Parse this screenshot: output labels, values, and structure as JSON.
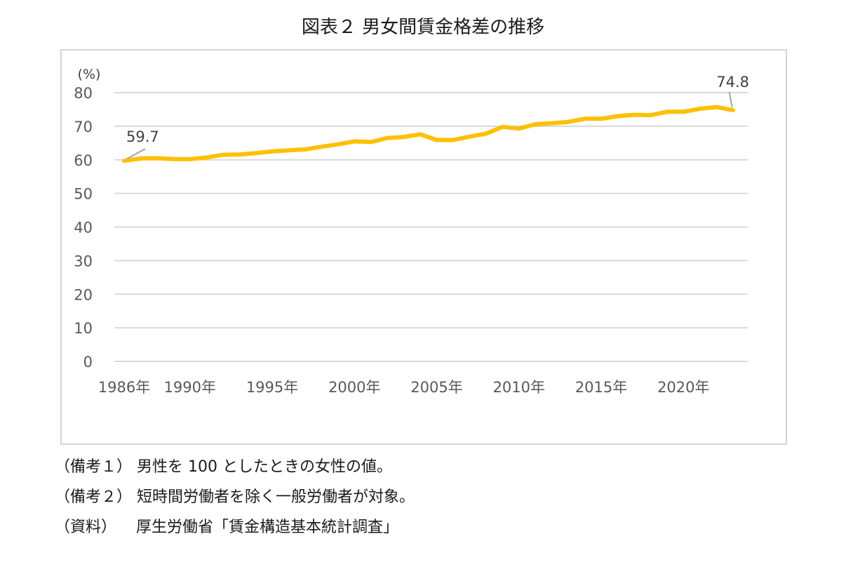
{
  "title": "図表２ 男女間賃金格差の推移",
  "chart_data": {
    "type": "line",
    "unit_label": "(%)",
    "ylim": [
      0,
      80
    ],
    "yticks": [
      0,
      10,
      20,
      30,
      40,
      50,
      60,
      70,
      80
    ],
    "grid": true,
    "legend": "none",
    "line_color": "#FFC000",
    "x_tick_labels": [
      {
        "year": 1986,
        "label": "1986年"
      },
      {
        "year": 1990,
        "label": "1990年"
      },
      {
        "year": 1995,
        "label": "1995年"
      },
      {
        "year": 2000,
        "label": "2000年"
      },
      {
        "year": 2005,
        "label": "2005年"
      },
      {
        "year": 2010,
        "label": "2010年"
      },
      {
        "year": 2015,
        "label": "2015年"
      },
      {
        "year": 2020,
        "label": "2020年"
      }
    ],
    "series": [
      {
        "x": [
          1986,
          1987,
          1988,
          1989,
          1990,
          1991,
          1992,
          1993,
          1994,
          1995,
          1996,
          1997,
          1998,
          1999,
          2000,
          2001,
          2002,
          2003,
          2004,
          2005,
          2006,
          2007,
          2008,
          2009,
          2010,
          2011,
          2012,
          2013,
          2014,
          2015,
          2016,
          2017,
          2018,
          2019,
          2020,
          2021,
          2022,
          2023
        ],
        "values": [
          59.7,
          60.4,
          60.5,
          60.2,
          60.2,
          60.7,
          61.5,
          61.6,
          62.0,
          62.5,
          62.8,
          63.1,
          63.9,
          64.6,
          65.5,
          65.3,
          66.5,
          66.8,
          67.6,
          65.9,
          65.9,
          66.9,
          67.8,
          69.8,
          69.3,
          70.6,
          70.9,
          71.3,
          72.2,
          72.2,
          73.0,
          73.4,
          73.3,
          74.3,
          74.3,
          75.2,
          75.7,
          74.8
        ]
      }
    ],
    "annotations": [
      {
        "year": 1986,
        "text": "59.7"
      },
      {
        "year": 2023,
        "text": "74.8"
      }
    ]
  },
  "notes": [
    "（備考１） 男性を 100 としたときの女性の値。",
    "（備考２） 短時間労働者を除く一般労働者が対象。",
    "（資料）    厚生労働省「賃金構造基本統計調査」"
  ]
}
